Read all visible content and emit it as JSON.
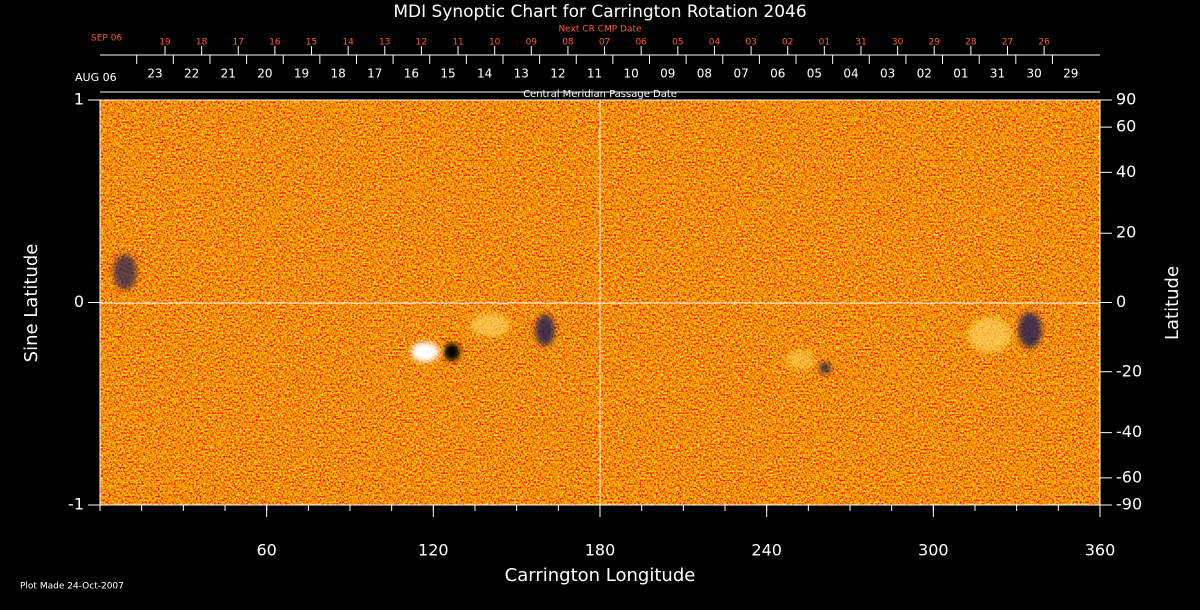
{
  "chart_data": {
    "type": "heatmap",
    "title": "MDI Synoptic Chart for Carrington Rotation 2046",
    "top_axis_title": "Next CR CMP Date",
    "top_axis_start": "SEP 06",
    "top_axis_labels": [
      "19",
      "18",
      "17",
      "16",
      "15",
      "14",
      "13",
      "12",
      "11",
      "10",
      "09",
      "08",
      "07",
      "06",
      "05",
      "04",
      "03",
      "02",
      "01",
      "31",
      "30",
      "29",
      "28",
      "27",
      "26"
    ],
    "date_axis_start": "AUG 06",
    "date_axis_labels": [
      "23",
      "22",
      "21",
      "20",
      "19",
      "18",
      "17",
      "16",
      "15",
      "14",
      "13",
      "12",
      "11",
      "10",
      "09",
      "08",
      "07",
      "06",
      "05",
      "04",
      "03",
      "02",
      "01",
      "31",
      "30",
      "29"
    ],
    "date_axis_title": "Central Meridian Passage Date",
    "xlabel": "Carrington Longitude",
    "ylabel": "Sine Latitude",
    "y2label": "Latitude",
    "xlim": [
      0,
      360
    ],
    "xticks": [
      60,
      120,
      180,
      240,
      300,
      360
    ],
    "ylim": [
      -1,
      1
    ],
    "yticks": [
      -1,
      0,
      1
    ],
    "y2lim": [
      -90,
      90
    ],
    "y2ticks": [
      90,
      60,
      40,
      20,
      0,
      -20,
      -40,
      -60,
      -90
    ],
    "y2scale": "sine",
    "footnote": "Plot Made 24-Oct-2007"
  }
}
